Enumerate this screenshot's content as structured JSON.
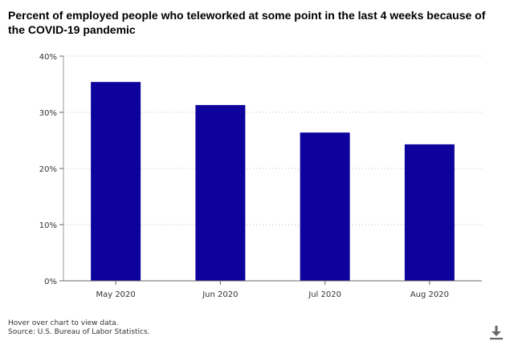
{
  "chart_data": {
    "type": "bar",
    "title": "Percent of employed people who teleworked at some point in the last 4 weeks because of the COVID-19 pandemic",
    "categories": [
      "May 2020",
      "Jun 2020",
      "Jul 2020",
      "Aug 2020"
    ],
    "values": [
      35.4,
      31.3,
      26.4,
      24.3
    ],
    "ylim": [
      0,
      40
    ],
    "yticks": [
      0,
      10,
      20,
      30,
      40
    ],
    "ytick_labels": [
      "0%",
      "10%",
      "20%",
      "30%",
      "40%"
    ],
    "xlabel": "",
    "ylabel": "",
    "grid": "horizontal dotted",
    "bar_color": "#0d029b"
  },
  "footer": {
    "hover_note": "Hover over chart to view data.",
    "source": "Source: U.S. Bureau of Labor Statistics."
  },
  "icons": {
    "download": "download-icon"
  }
}
